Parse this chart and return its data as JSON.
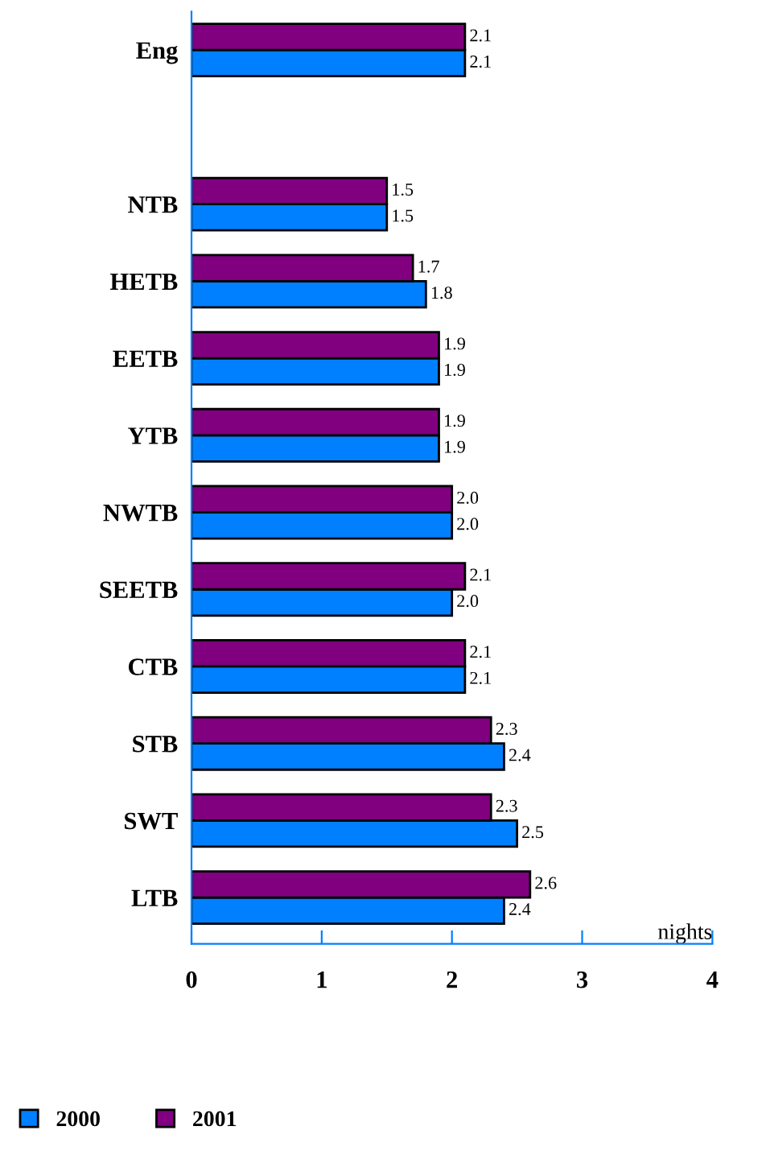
{
  "chart_data": {
    "type": "bar",
    "orientation": "horizontal",
    "xlabel": "nights",
    "categories": [
      "Eng",
      null,
      "NTB",
      "HETB",
      "EETB",
      "YTB",
      "NWTB",
      "SEETB",
      "CTB",
      "STB",
      "SWT",
      "LTB"
    ],
    "series": [
      {
        "name": "2000",
        "color": "#0080ff",
        "values": [
          2.1,
          null,
          1.5,
          1.8,
          1.9,
          1.9,
          2.0,
          2.0,
          2.1,
          2.4,
          2.5,
          2.4
        ],
        "value_labels": [
          "2.1",
          null,
          "1.5",
          "1.8",
          "1.9",
          "1.9",
          "2.0",
          "2.0",
          "2.1",
          "2.4",
          "2.5",
          "2.4"
        ]
      },
      {
        "name": "2001",
        "color": "#800080",
        "values": [
          2.1,
          null,
          1.5,
          1.7,
          1.9,
          1.9,
          2.0,
          2.1,
          2.1,
          2.3,
          2.3,
          2.6
        ],
        "value_labels": [
          "2.1",
          null,
          "1.5",
          "1.7",
          "1.9",
          "1.9",
          "2.0",
          "2.1",
          "2.1",
          "2.3",
          "2.3",
          "2.6"
        ]
      }
    ],
    "xlim": [
      0,
      4
    ],
    "xticks": [
      0,
      1,
      2,
      3,
      4
    ],
    "grid": false,
    "legend": "bottom left"
  }
}
